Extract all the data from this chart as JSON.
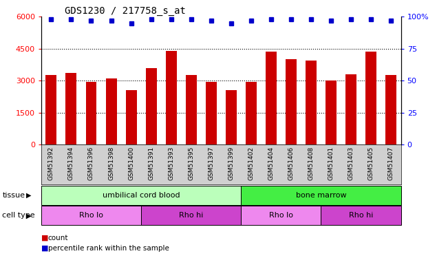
{
  "title": "GDS1230 / 217758_s_at",
  "samples": [
    "GSM51392",
    "GSM51394",
    "GSM51396",
    "GSM51398",
    "GSM51400",
    "GSM51391",
    "GSM51393",
    "GSM51395",
    "GSM51397",
    "GSM51399",
    "GSM51402",
    "GSM51404",
    "GSM51406",
    "GSM51408",
    "GSM51401",
    "GSM51403",
    "GSM51405",
    "GSM51407"
  ],
  "bar_values": [
    3250,
    3350,
    2950,
    3100,
    2550,
    3600,
    4400,
    3250,
    2950,
    2550,
    2950,
    4350,
    4000,
    3950,
    3000,
    3300,
    4350,
    3250
  ],
  "percentile_values": [
    98,
    98,
    97,
    97,
    95,
    98,
    98,
    98,
    97,
    95,
    97,
    98,
    98,
    98,
    97,
    98,
    98,
    97
  ],
  "bar_color": "#cc0000",
  "dot_color": "#0000cc",
  "left_ylim": [
    0,
    6000
  ],
  "right_ylim": [
    0,
    100
  ],
  "left_yticks": [
    0,
    1500,
    3000,
    4500,
    6000
  ],
  "right_yticks": [
    0,
    25,
    50,
    75,
    100
  ],
  "right_yticklabels": [
    "0",
    "25",
    "50",
    "75",
    "100%"
  ],
  "grid_values": [
    1500,
    3000,
    4500
  ],
  "tissue_groups": [
    {
      "label": "umbilical cord blood",
      "start": 0,
      "end": 10,
      "color": "#bbffbb"
    },
    {
      "label": "bone marrow",
      "start": 10,
      "end": 18,
      "color": "#44ee44"
    }
  ],
  "cell_type_groups": [
    {
      "label": "Rho lo",
      "start": 0,
      "end": 5,
      "color": "#ee88ee"
    },
    {
      "label": "Rho hi",
      "start": 5,
      "end": 10,
      "color": "#cc44cc"
    },
    {
      "label": "Rho lo",
      "start": 10,
      "end": 14,
      "color": "#ee88ee"
    },
    {
      "label": "Rho hi",
      "start": 14,
      "end": 18,
      "color": "#cc44cc"
    }
  ],
  "count_legend": "count",
  "pct_legend": "percentile rank within the sample",
  "background_color": "#ffffff",
  "plot_bg_color": "#ffffff",
  "xlabel_bg_color": "#d0d0d0"
}
